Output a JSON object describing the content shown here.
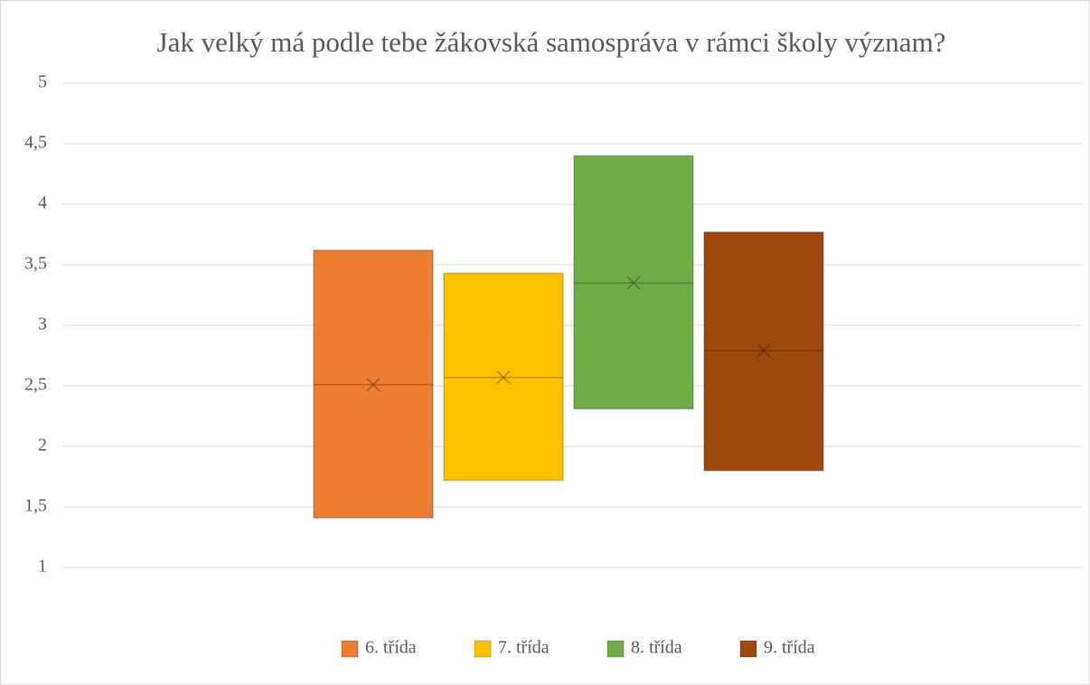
{
  "chart_data": {
    "type": "box",
    "title": "Jak velký má podle tebe žákovská samospráva v rámci školy význam?",
    "ylim": [
      1,
      5
    ],
    "yticks": [
      1,
      {
        "value": 1.5,
        "label": "1,5"
      },
      2,
      {
        "value": 2.5,
        "label": "2,5"
      },
      3,
      {
        "value": 3.5,
        "label": "3,5"
      },
      4,
      {
        "value": 4.5,
        "label": "4,5"
      },
      5
    ],
    "grid": true,
    "legend": "bottom",
    "series": [
      {
        "name": "6. třída",
        "color": "#ed7d31",
        "q1": 1.41,
        "median": 2.51,
        "q3": 3.62,
        "mean": 2.51
      },
      {
        "name": "7. třída",
        "color": "#ffc000",
        "q1": 1.72,
        "median": 2.57,
        "q3": 3.43,
        "mean": 2.57
      },
      {
        "name": "8. třída",
        "color": "#70ad47",
        "q1": 2.31,
        "median": 3.35,
        "q3": 4.4,
        "mean": 3.35
      },
      {
        "name": "9. třída",
        "color": "#9e480e",
        "q1": 1.8,
        "median": 2.79,
        "q3": 3.77,
        "mean": 2.79
      }
    ]
  }
}
